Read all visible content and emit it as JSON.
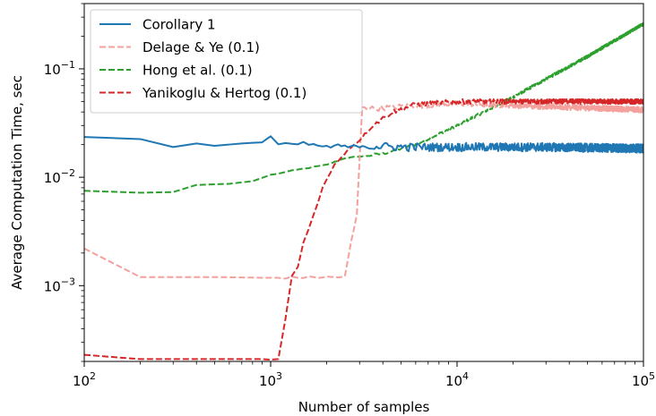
{
  "chart_data": {
    "type": "line",
    "xlabel": "Number of samples",
    "ylabel": "Average Computation Time, sec",
    "xscale": "log",
    "yscale": "log",
    "xlim": [
      100,
      100000
    ],
    "ylim": [
      0.0002,
      0.4
    ],
    "x_ticks": [
      {
        "value": 100,
        "base": "10",
        "exp": "2"
      },
      {
        "value": 1000,
        "base": "10",
        "exp": "3"
      },
      {
        "value": 10000,
        "base": "10",
        "exp": "4"
      },
      {
        "value": 100000,
        "base": "10",
        "exp": "5"
      }
    ],
    "y_ticks": [
      {
        "value": 0.001,
        "base": "10",
        "exp": "−3"
      },
      {
        "value": 0.01,
        "base": "10",
        "exp": "−2"
      },
      {
        "value": 0.1,
        "base": "10",
        "exp": "−1"
      }
    ],
    "legend_position": "top-left",
    "series": [
      {
        "name": "Corollary 1",
        "color": "#1f77b4",
        "style": "solid",
        "noise": 0.09,
        "points": [
          [
            100,
            0.0235
          ],
          [
            200,
            0.0225
          ],
          [
            300,
            0.019
          ],
          [
            400,
            0.0205
          ],
          [
            500,
            0.0195
          ],
          [
            700,
            0.0205
          ],
          [
            900,
            0.021
          ],
          [
            1000,
            0.0235
          ],
          [
            1100,
            0.02
          ],
          [
            1300,
            0.02
          ],
          [
            1500,
            0.0205
          ],
          [
            1800,
            0.0195
          ],
          [
            2100,
            0.019
          ],
          [
            2300,
            0.0195
          ],
          [
            2700,
            0.019
          ],
          [
            3000,
            0.0195
          ],
          [
            5000,
            0.019
          ],
          [
            10000,
            0.019
          ],
          [
            30000,
            0.019
          ],
          [
            100000,
            0.0185
          ]
        ]
      },
      {
        "name": "Delage & Ye (0.1)",
        "color": "#f4a09c",
        "style": "dashed",
        "noise": 0.06,
        "points": [
          [
            100,
            0.0022
          ],
          [
            200,
            0.0012
          ],
          [
            500,
            0.0012
          ],
          [
            1000,
            0.00118
          ],
          [
            2000,
            0.0012
          ],
          [
            2500,
            0.0012
          ],
          [
            2700,
            0.0025
          ],
          [
            2900,
            0.0045
          ],
          [
            3100,
            0.045
          ],
          [
            3500,
            0.043
          ],
          [
            5000,
            0.045
          ],
          [
            10000,
            0.048
          ],
          [
            30000,
            0.045
          ],
          [
            100000,
            0.042
          ]
        ]
      },
      {
        "name": "Hong et al. (0.1)",
        "color": "#2ca02c",
        "style": "dashed",
        "noise": 0.03,
        "points": [
          [
            100,
            0.0075
          ],
          [
            200,
            0.0072
          ],
          [
            300,
            0.0073
          ],
          [
            400,
            0.0085
          ],
          [
            600,
            0.0087
          ],
          [
            800,
            0.0092
          ],
          [
            1000,
            0.0105
          ],
          [
            1500,
            0.012
          ],
          [
            2000,
            0.013
          ],
          [
            2500,
            0.015
          ],
          [
            3000,
            0.0155
          ],
          [
            4000,
            0.0165
          ],
          [
            6000,
            0.02
          ],
          [
            10000,
            0.03
          ],
          [
            20000,
            0.055
          ],
          [
            50000,
            0.13
          ],
          [
            100000,
            0.26
          ]
        ]
      },
      {
        "name": "Yanikoglu & Hertog (0.1)",
        "color": "#d62728",
        "style": "dashed",
        "noise": 0.05,
        "points": [
          [
            100,
            0.00023
          ],
          [
            200,
            0.00021
          ],
          [
            500,
            0.00021
          ],
          [
            900,
            0.00021
          ],
          [
            1150,
            0.00021
          ],
          [
            1250,
            0.0011
          ],
          [
            1400,
            0.0015
          ],
          [
            1500,
            0.0025
          ],
          [
            1700,
            0.0045
          ],
          [
            1900,
            0.008
          ],
          [
            2200,
            0.013
          ],
          [
            2600,
            0.018
          ],
          [
            3000,
            0.022
          ],
          [
            3500,
            0.03
          ],
          [
            4500,
            0.04
          ],
          [
            6000,
            0.047
          ],
          [
            10000,
            0.05
          ],
          [
            30000,
            0.05
          ],
          [
            100000,
            0.05
          ]
        ]
      }
    ]
  }
}
